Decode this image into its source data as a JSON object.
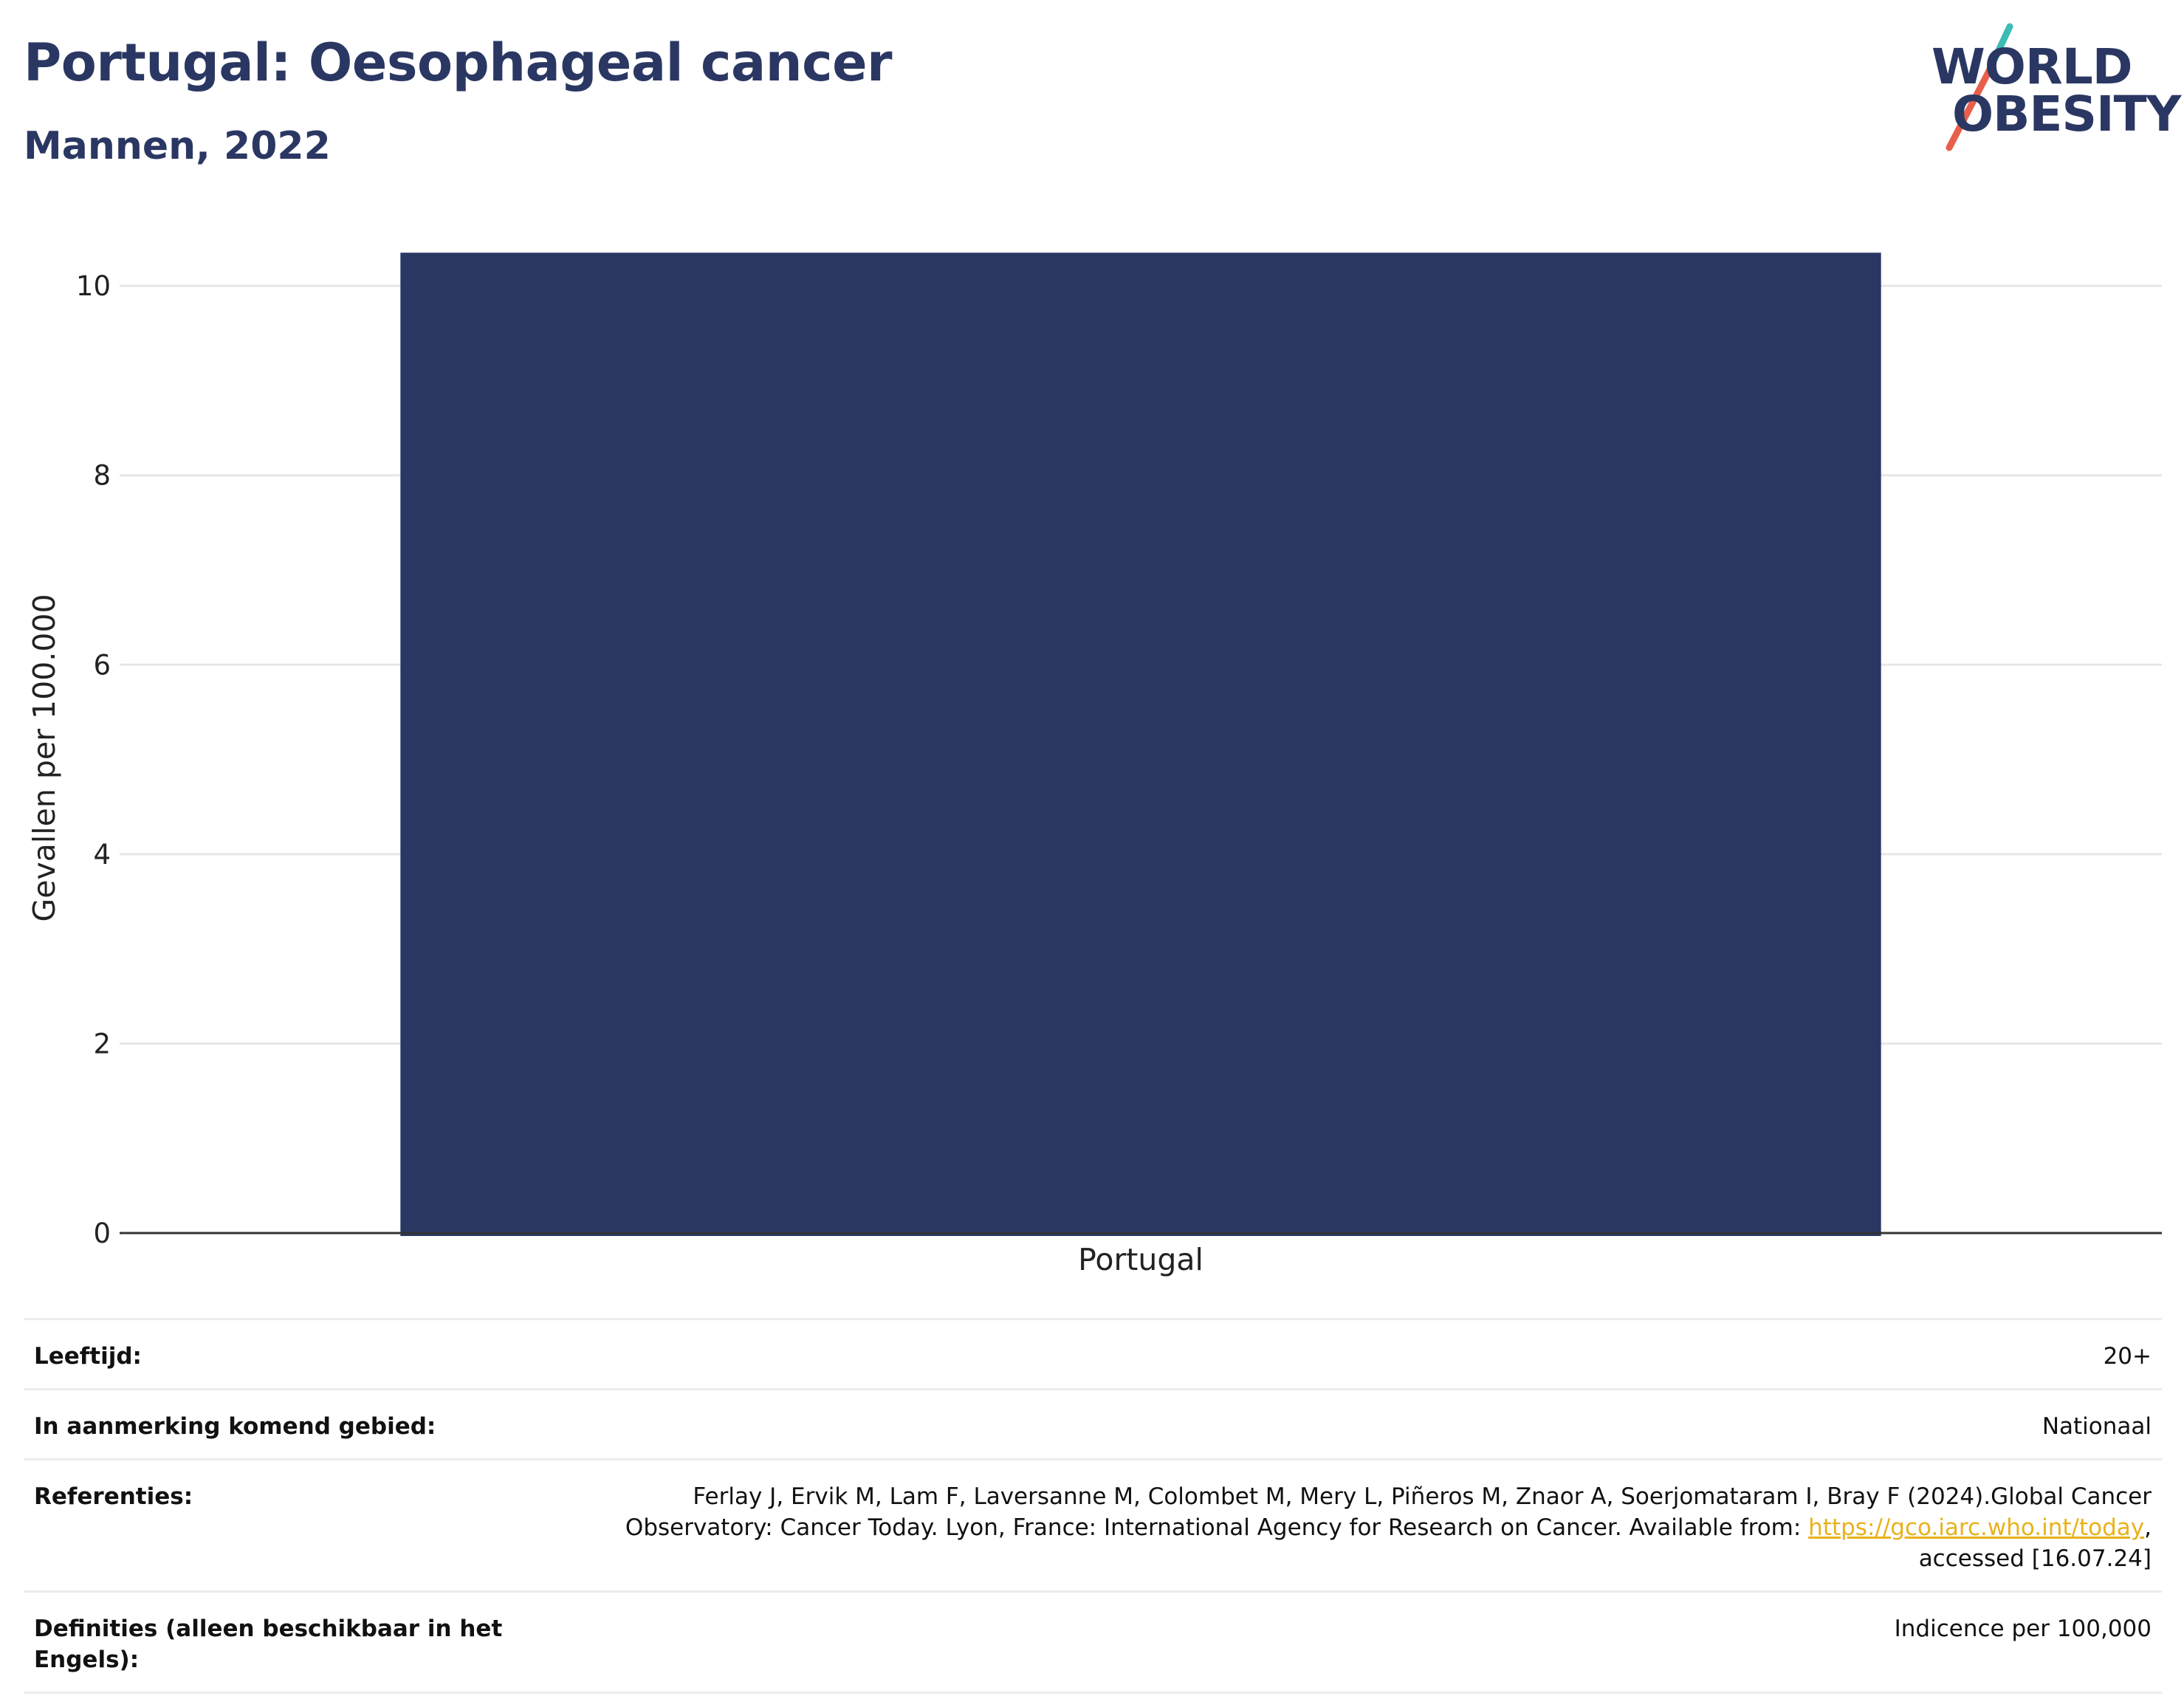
{
  "header": {
    "title": "Portugal: Oesophageal cancer",
    "subtitle": "Mannen, 2022"
  },
  "logo": {
    "line1": "WORLD",
    "line2": "OBESITY",
    "colors": {
      "text": "#2b3763",
      "slash_top": "#3bbcb4",
      "slash_bottom": "#e8604c"
    }
  },
  "chart_data": {
    "type": "bar",
    "categories": [
      "Portugal"
    ],
    "values": [
      10.35
    ],
    "ylabel": "Gevallen per 100.000",
    "ylim": [
      0,
      10.5
    ],
    "yticks": [
      0,
      2,
      4,
      6,
      8,
      10
    ],
    "grid": true,
    "bar_color": "#2b3763"
  },
  "meta": {
    "rows": [
      {
        "key": "Leeftijd:",
        "value": "20+"
      },
      {
        "key": "In aanmerking komend gebied:",
        "value": "Nationaal"
      },
      {
        "key": "Referenties:",
        "value_line1": "Ferlay J, Ervik M, Lam F, Laversanne M, Colombet M, Mery L, Piñeros M, Znaor A, Soerjomataram I, Bray F (2024).Global Cancer",
        "value_line2_pre": "Observatory: Cancer Today. Lyon, France: International Agency for Research on Cancer. Available from: ",
        "link": "https://gco.iarc.who.int/today",
        "value_line2_post": ",",
        "value_line3": "accessed [16.07.24]"
      },
      {
        "key": "Definities (alleen beschikbaar in het Engels):",
        "value": "Indicence per 100,000"
      }
    ]
  }
}
